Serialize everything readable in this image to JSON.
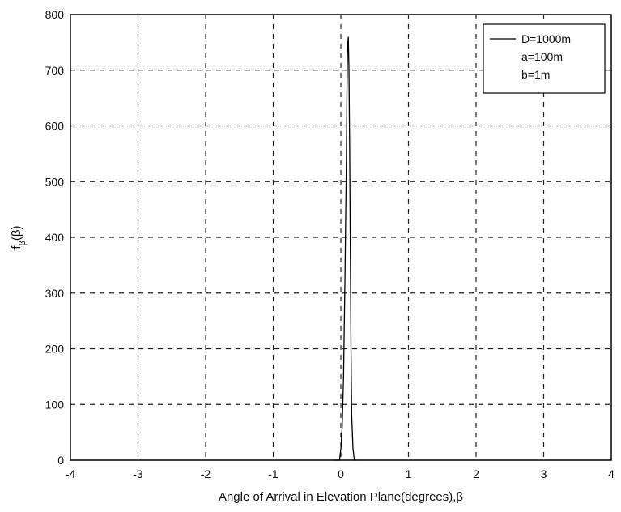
{
  "chart_data": {
    "type": "line",
    "title": "",
    "xlabel": "Angle of Arrival in Elevation Plane(degrees),β",
    "ylabel_main": "f",
    "ylabel_sub": "β",
    "ylabel_paren": "(β)",
    "xlim": [
      -4,
      4
    ],
    "ylim": [
      0,
      800
    ],
    "xticks": [
      -4,
      -3,
      -2,
      -1,
      0,
      1,
      2,
      3,
      4
    ],
    "yticks": [
      0,
      100,
      200,
      300,
      400,
      500,
      600,
      700,
      800
    ],
    "grid": true,
    "legend": {
      "placement": "top-right",
      "entries": [
        "D=1000m",
        "a=100m",
        "b=1m"
      ]
    },
    "series": [
      {
        "name": "D=1000m",
        "color": "#000000",
        "x": [
          -0.12,
          -0.07,
          -0.02,
          0.0,
          0.02,
          0.04,
          0.06,
          0.08,
          0.09,
          0.1,
          0.11,
          0.12,
          0.13,
          0.14,
          0.15,
          0.16,
          0.18,
          0.2,
          0.23
        ],
        "y": [
          0,
          0,
          0,
          20,
          60,
          150,
          320,
          520,
          660,
          745,
          760,
          700,
          560,
          380,
          200,
          80,
          20,
          0,
          0
        ]
      }
    ]
  }
}
